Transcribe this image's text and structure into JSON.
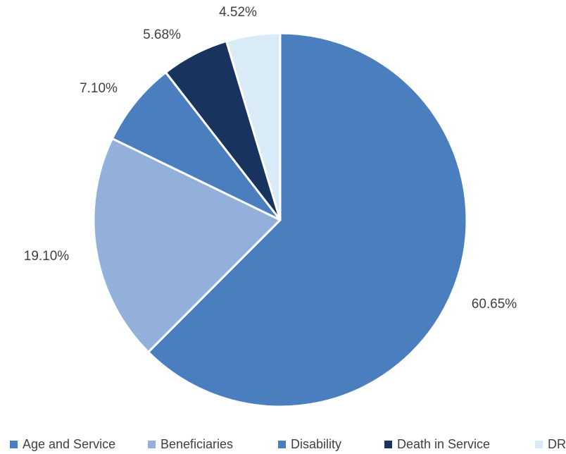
{
  "chart_data": {
    "type": "pie",
    "title": "",
    "categories": [
      "Age and Service",
      "Beneficiaries",
      "Disability",
      "Death in Service",
      "DROP"
    ],
    "values": [
      60.65,
      19.1,
      7.1,
      5.68,
      4.52
    ],
    "data_labels": [
      "60.65%",
      "19.10%",
      "7.10%",
      "5.68%",
      "4.52%"
    ],
    "colors": [
      "#4a7ebf",
      "#92b0da",
      "#4a7ebf",
      "#17335e",
      "#d9ebf7"
    ],
    "legend_position": "bottom",
    "start_angle": "12 o'clock",
    "direction": "clockwise",
    "slice_border_color": "#ffffff"
  }
}
